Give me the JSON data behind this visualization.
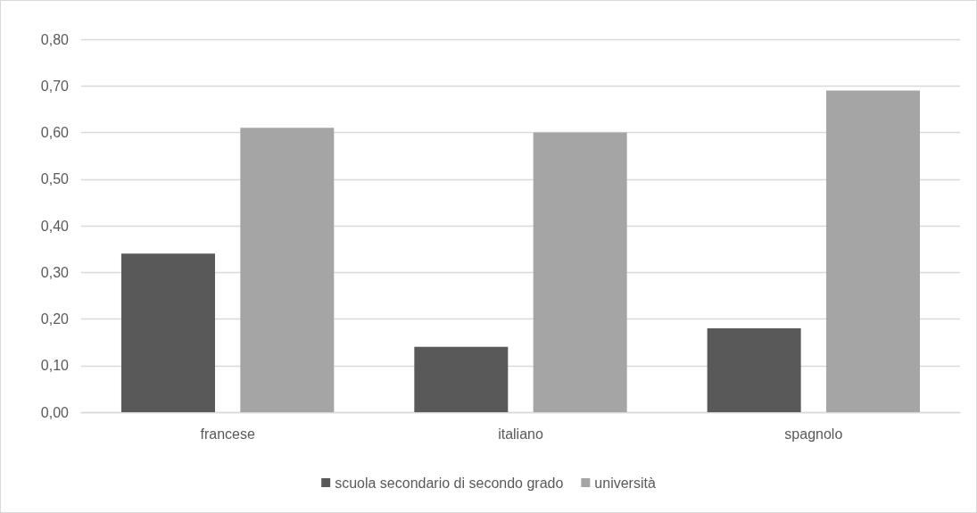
{
  "chart_data": {
    "type": "bar",
    "categories": [
      "francese",
      "italiano",
      "spagnolo"
    ],
    "series": [
      {
        "name": "scuola secondario di secondo grado",
        "color": "#595959",
        "values": [
          0.34,
          0.14,
          0.18
        ]
      },
      {
        "name": "università",
        "color": "#a5a5a5",
        "values": [
          0.61,
          0.6,
          0.69
        ]
      }
    ],
    "ylim": [
      0,
      0.8
    ],
    "yticks": [
      {
        "value": 0,
        "label": "0,00"
      },
      {
        "value": 0.1,
        "label": "0,10"
      },
      {
        "value": 0.2,
        "label": "0,20"
      },
      {
        "value": 0.3,
        "label": "0,30"
      },
      {
        "value": 0.4,
        "label": "0,40"
      },
      {
        "value": 0.5,
        "label": "0,50"
      },
      {
        "value": 0.6,
        "label": "0,60"
      },
      {
        "value": 0.7,
        "label": "0,70"
      },
      {
        "value": 0.8,
        "label": "0,80"
      }
    ],
    "grid": "y",
    "legend": "bottom"
  }
}
